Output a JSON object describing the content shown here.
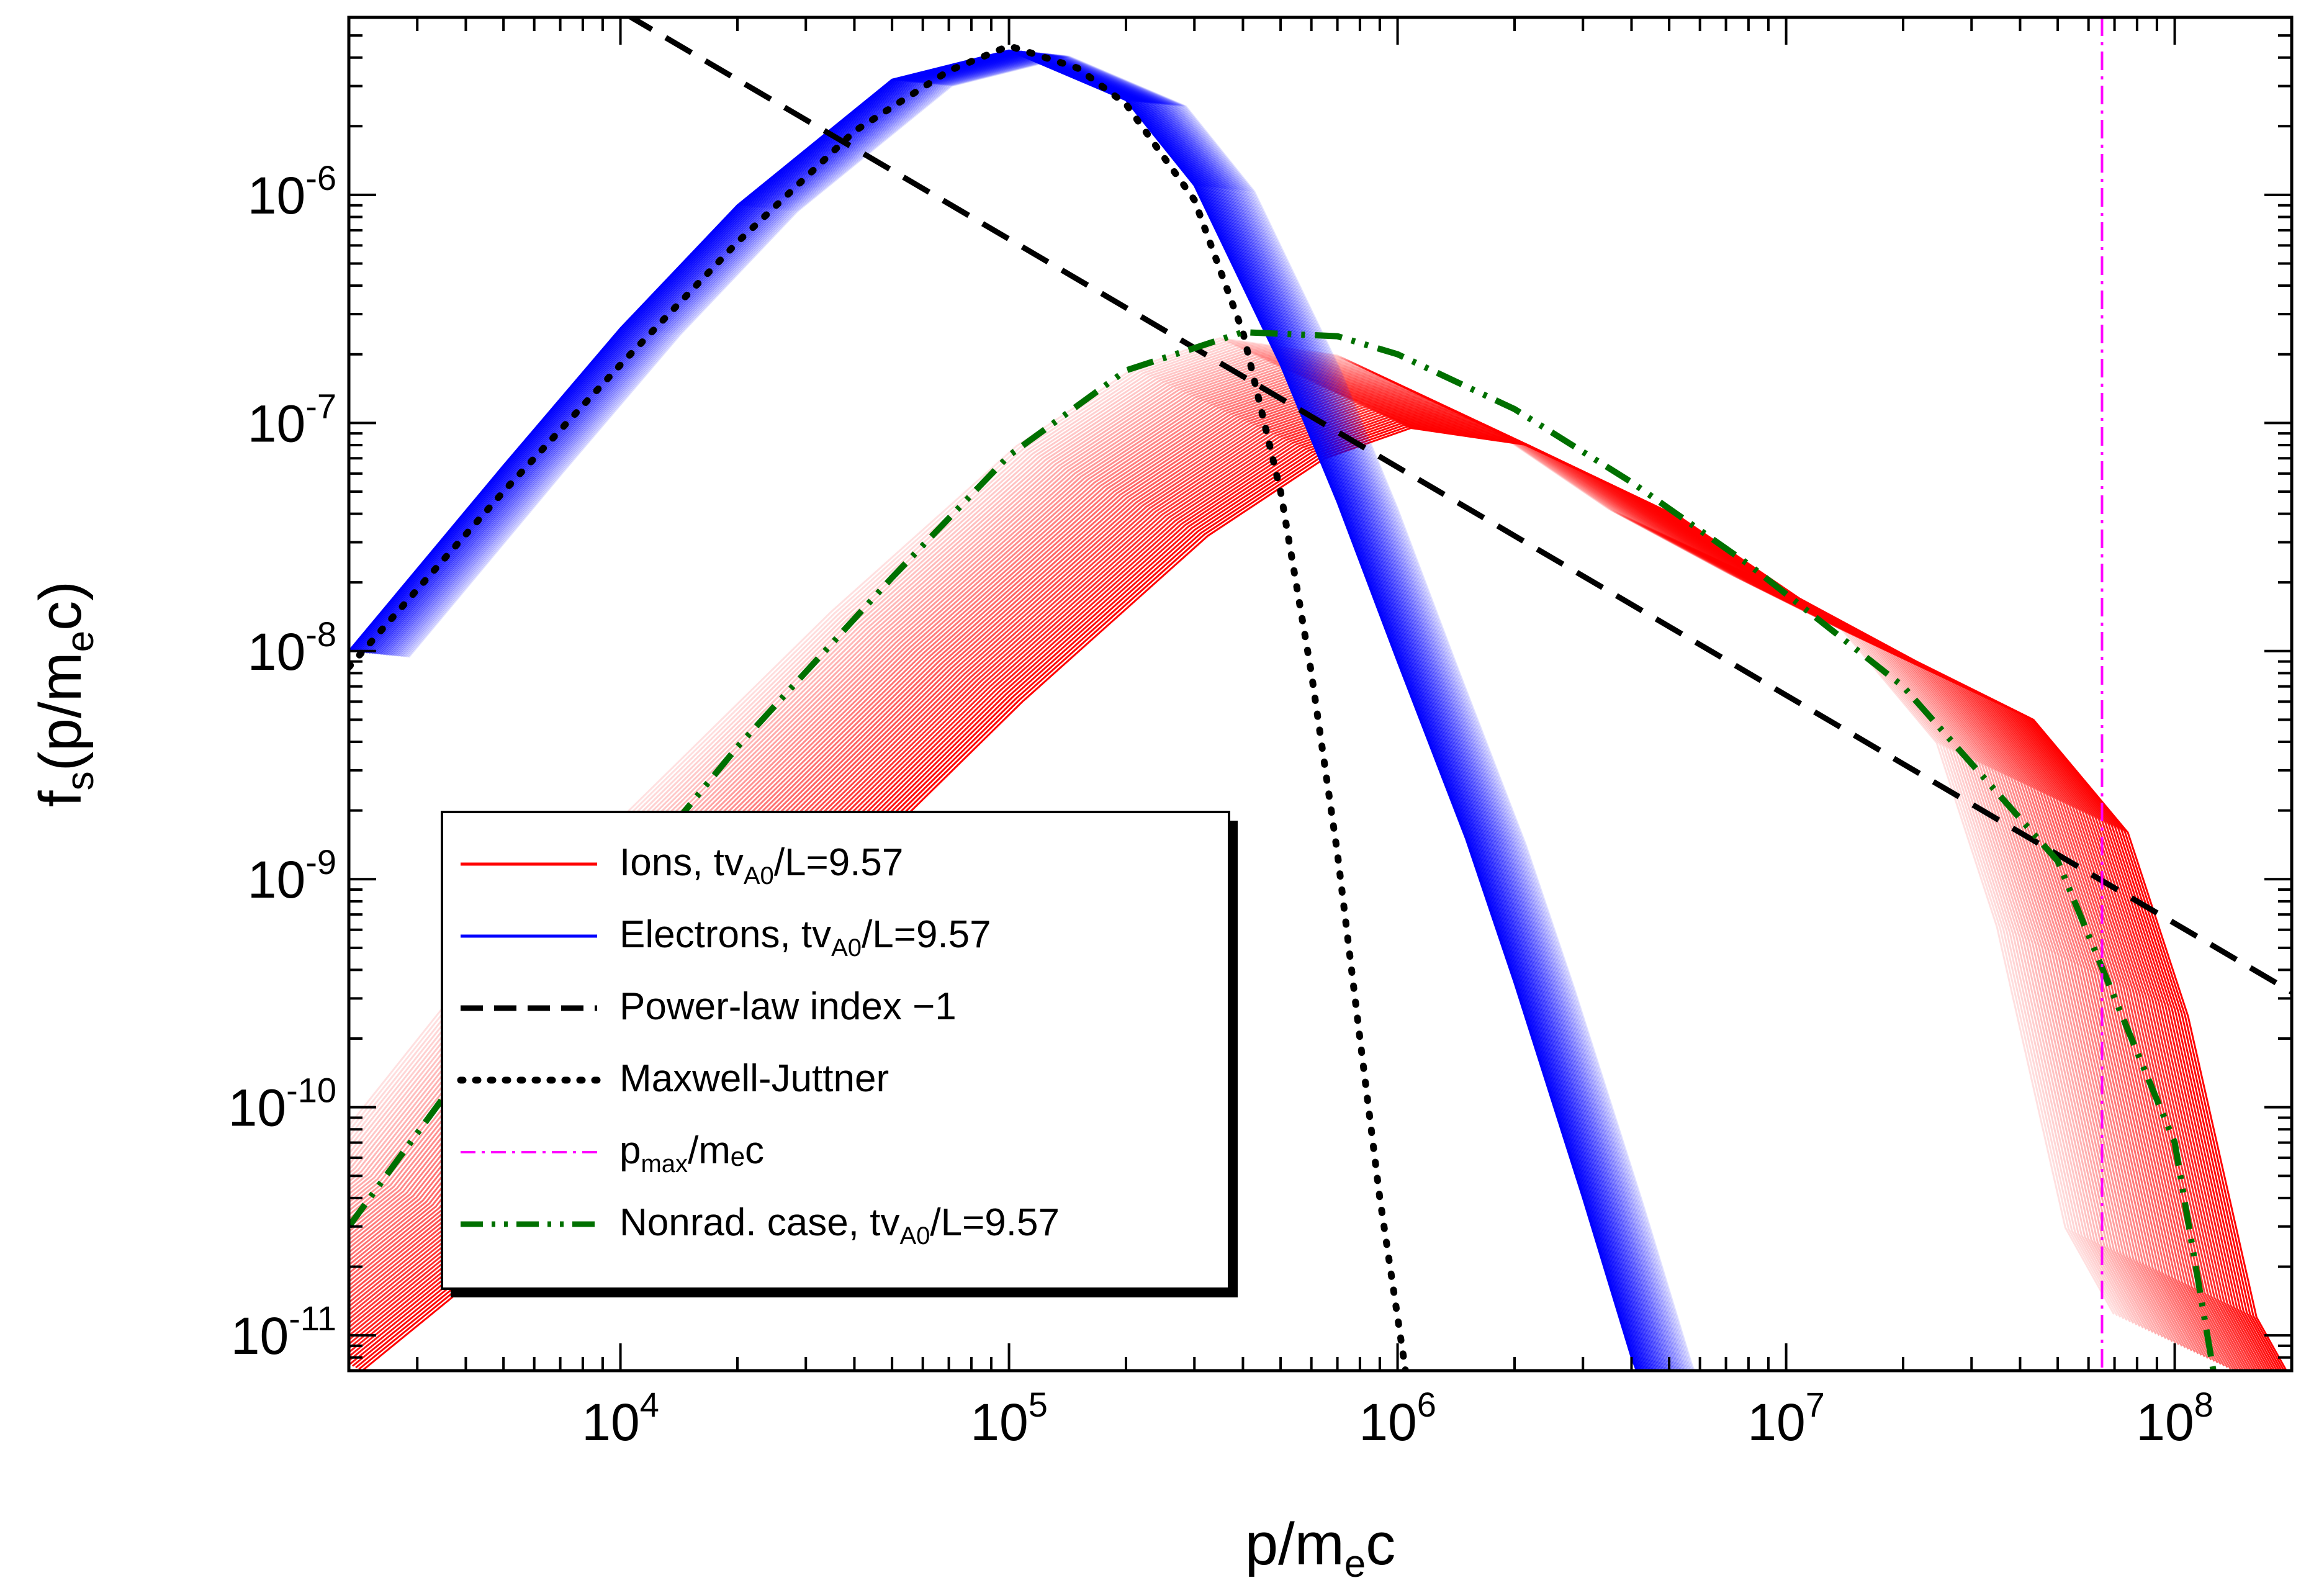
{
  "chart_data": {
    "type": "line",
    "xscale": "log",
    "yscale": "log",
    "xlim": [
      2000,
      200000000
    ],
    "ylim": [
      7e-12,
      6e-06
    ],
    "x_ticks": [
      {
        "base": "10",
        "exp": "4",
        "value": 10000
      },
      {
        "base": "10",
        "exp": "5",
        "value": 100000
      },
      {
        "base": "10",
        "exp": "6",
        "value": 1000000
      },
      {
        "base": "10",
        "exp": "7",
        "value": 10000000
      },
      {
        "base": "10",
        "exp": "8",
        "value": 100000000
      }
    ],
    "y_ticks": [
      {
        "base": "10",
        "exp": "-6",
        "value": 1e-06
      },
      {
        "base": "10",
        "exp": "-7",
        "value": 1e-07
      },
      {
        "base": "10",
        "exp": "-8",
        "value": 1e-08
      },
      {
        "base": "10",
        "exp": "-9",
        "value": 1e-09
      },
      {
        "base": "10",
        "exp": "-10",
        "value": 1e-10
      },
      {
        "base": "10",
        "exp": "-11",
        "value": 1e-11
      }
    ],
    "xlabel": {
      "main": "p/m",
      "sub": "e",
      "tail": "c"
    },
    "ylabel": {
      "main": "f",
      "sub1": "s",
      "mid": "(p/m",
      "sub2": "e",
      "tail": "c)"
    },
    "legend": {
      "placement": "lower-left",
      "entries": [
        {
          "key": "ions",
          "pre": "Ions, tv",
          "sub": "A0",
          "post": "/L=9.57",
          "color": "#ff0000",
          "style": "solid"
        },
        {
          "key": "electrons",
          "pre": "Electrons, tv",
          "sub": "A0",
          "post": "/L=9.57",
          "color": "#0000ff",
          "style": "solid"
        },
        {
          "key": "powerlaw",
          "pre": "Power-law index −1",
          "sub": "",
          "post": "",
          "color": "#000000",
          "style": "dashed"
        },
        {
          "key": "mj",
          "pre": "Maxwell-Juttner",
          "sub": "",
          "post": "",
          "color": "#000000",
          "style": "dotted"
        },
        {
          "key": "pmax",
          "pre": "p",
          "sub": "max",
          "post": "/mₑc",
          "color": "#ff00ff",
          "style": "dashdot"
        },
        {
          "key": "nonrad",
          "pre": "Nonrad. case, tv",
          "sub": "A0",
          "post": "/L=9.57",
          "color": "#007000",
          "style": "dashdotdot"
        }
      ]
    },
    "pmax_line_x": 65000000,
    "series": [
      {
        "key": "powerlaw",
        "color": "#000000",
        "x": [
          2000,
          200000000
        ],
        "y": [
          3.2e-05,
          3.2e-10
        ]
      },
      {
        "key": "mj",
        "color": "#000000",
        "x": [
          2000,
          5000,
          10000,
          20000,
          40000,
          70000,
          100000,
          150000,
          200000,
          300000,
          400000,
          500000,
          600000,
          700000,
          800000,
          900000,
          1000000,
          1100000
        ],
        "y": [
          8.5e-09,
          5e-08,
          1.8e-07,
          6.2e-07,
          1.9e-06,
          3.5e-06,
          4.5e-06,
          3.6e-06,
          2.5e-06,
          9.5e-07,
          2.5e-07,
          5e-08,
          8e-09,
          1.3e-09,
          2e-10,
          4e-11,
          1.2e-11,
          4e-12
        ]
      },
      {
        "key": "nonrad",
        "color": "#007000",
        "x": [
          2000,
          4000,
          10000,
          20000,
          50000,
          100000,
          200000,
          400000,
          700000,
          1000000,
          2000000,
          4000000,
          8000000,
          20000000,
          50000000,
          100000000,
          130000000
        ],
        "y": [
          3e-11,
          1.5e-10,
          9e-10,
          3.8e-09,
          2.1e-08,
          7.2e-08,
          1.7e-07,
          2.5e-07,
          2.4e-07,
          2e-07,
          1.15e-07,
          5.5e-08,
          2.4e-08,
          7e-09,
          1.2e-09,
          7e-11,
          5e-12
        ]
      },
      {
        "key": "electrons",
        "color": "#0000ff",
        "kind": "family",
        "count": 40,
        "x": [
          2000,
          5000,
          10000,
          20000,
          50000,
          100000,
          200000,
          300000,
          500000,
          700000,
          1000000,
          1500000,
          2000000,
          3000000,
          4000000,
          5000000
        ],
        "y": [
          1e-08,
          6.5e-08,
          2.6e-07,
          9e-07,
          3.2e-06,
          4.3e-06,
          2.6e-06,
          1.1e-06,
          1.8e-07,
          4.5e-08,
          9e-09,
          1.5e-09,
          3.5e-10,
          4e-11,
          8e-12,
          3e-12
        ]
      },
      {
        "key": "ions",
        "color": "#ff0000",
        "kind": "family",
        "count": 60,
        "x": [
          2000,
          5000,
          10000,
          30000,
          100000,
          300000,
          600000,
          1000000,
          2000000,
          5000000,
          10000000,
          20000000,
          40000000,
          70000000,
          100000000,
          150000000,
          200000000
        ],
        "y": [
          7e-12,
          2.5e-11,
          1.1e-10,
          8e-10,
          6e-09,
          3.2e-08,
          7e-08,
          9.5e-08,
          8e-08,
          3.8e-08,
          1.7e-08,
          9e-09,
          5e-09,
          1.6e-09,
          2.5e-10,
          1.2e-11,
          5e-12
        ]
      }
    ]
  }
}
